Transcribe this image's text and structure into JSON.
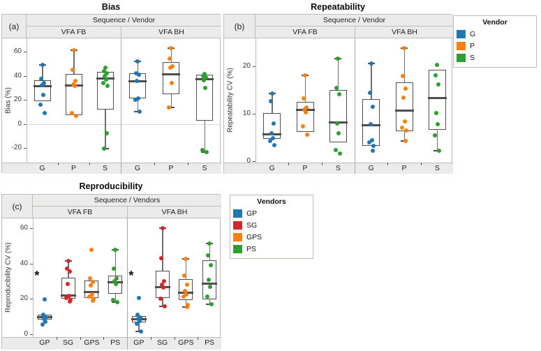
{
  "figure_title": "Boxplot figure with panels (a) Bias, (b) Repeatability, (c) Reproducibility",
  "legends": [
    {
      "title": "Vendor",
      "items": [
        {
          "label": "G",
          "color": "#1f77b4"
        },
        {
          "label": "P",
          "color": "#ff7f0e"
        },
        {
          "label": "S",
          "color": "#2ca02c"
        }
      ]
    },
    {
      "title": "Vendors",
      "items": [
        {
          "label": "GP",
          "color": "#1f77b4"
        },
        {
          "label": "SG",
          "color": "#d62728"
        },
        {
          "label": "GPS",
          "color": "#ff7f0e"
        },
        {
          "label": "PS",
          "color": "#2ca02c"
        }
      ]
    }
  ],
  "chart_data": [
    {
      "type": "boxplot-strip",
      "panel": "(a)",
      "title": "Bias",
      "facet_header": "Sequence  /  Vendor",
      "ylabel": "Bias (%)",
      "ylim": [
        -32,
        71
      ],
      "yticks": [
        60,
        40,
        20,
        0,
        -20
      ],
      "gridlines": [
        0
      ],
      "annotations": [],
      "facets": [
        {
          "label": "VFA FB",
          "groups": [
            {
              "label": "G",
              "color": "#1f77b4",
              "points": [
                49,
                37.5,
                34,
                32,
                24,
                16,
                9
              ],
              "q1": 19,
              "median": 31.5,
              "q3": 36,
              "whisker_high": 49,
              "whisker_low": null
            },
            {
              "label": "P",
              "color": "#ff7f0e",
              "points": [
                61,
                45,
                35.5,
                33,
                31.5,
                9,
                6.5
              ],
              "q1": 7.5,
              "median": 32,
              "q3": 41.5,
              "whisker_high": 61,
              "whisker_low": null
            },
            {
              "label": "S",
              "color": "#2ca02c",
              "points": [
                46.5,
                44,
                42,
                39.5,
                37,
                34,
                31.5,
                -7.5,
                -20.5
              ],
              "q1": 12,
              "median": 37.5,
              "q3": 43.5,
              "whisker_high": null,
              "whisker_low": -20.5
            }
          ]
        },
        {
          "label": "VFA BH",
          "groups": [
            {
              "label": "G",
              "color": "#1f77b4",
              "points": [
                52,
                42,
                41,
                35.5,
                21.5,
                20,
                10
              ],
              "q1": 21,
              "median": 35.5,
              "q3": 42,
              "whisker_high": 52,
              "whisker_low": 10
            },
            {
              "label": "P",
              "color": "#ff7f0e",
              "points": [
                63,
                54.5,
                48,
                46.5,
                34,
                13.5
              ],
              "q1": 24.5,
              "median": 41,
              "q3": 51.5,
              "whisker_high": 63,
              "whisker_low": 13.5
            },
            {
              "label": "S",
              "color": "#2ca02c",
              "points": [
                41.5,
                40,
                38.5,
                36.5,
                30,
                -21.5,
                -23.5
              ],
              "q1": 3,
              "median": 37,
              "q3": 41,
              "whisker_high": null,
              "whisker_low": -23.5
            }
          ]
        }
      ]
    },
    {
      "type": "boxplot-strip",
      "panel": "(b)",
      "title": "Repeatability",
      "facet_header": "Sequence  /  Vendor",
      "ylabel": "Repeatability CV (%)",
      "ylim": [
        -0.3,
        25.8
      ],
      "yticks": [
        20,
        10,
        0
      ],
      "gridlines": [],
      "annotations": [],
      "facets": [
        {
          "label": "VFA FB",
          "groups": [
            {
              "label": "G",
              "color": "#1f77b4",
              "points": [
                14.2,
                12.6,
                7.9,
                5.9,
                4.9,
                4.2,
                3.4
              ],
              "q1": 4.7,
              "median": 5.6,
              "q3": 10.1,
              "whisker_high": 14.2,
              "whisker_low": null
            },
            {
              "label": "P",
              "color": "#ff7f0e",
              "points": [
                18,
                13.2,
                11.3,
                10.9,
                10.2,
                7.3,
                5.6
              ],
              "q1": 6.2,
              "median": 10.7,
              "q3": 12.4,
              "whisker_high": 18,
              "whisker_low": null
            },
            {
              "label": "S",
              "color": "#2ca02c",
              "points": [
                21.6,
                15.4,
                14.1,
                7.9,
                5.9,
                2.4,
                1.6
              ],
              "q1": 4,
              "median": 8.1,
              "q3": 14.9,
              "whisker_high": 21.6,
              "whisker_low": null
            }
          ]
        },
        {
          "label": "VFA BH",
          "groups": [
            {
              "label": "G",
              "color": "#1f77b4",
              "points": [
                20.5,
                14.3,
                11.5,
                7.7,
                4.4,
                3.9,
                3.2,
                2.2
              ],
              "q1": 3.2,
              "median": 7.6,
              "q3": 13.1,
              "whisker_high": 20.5,
              "whisker_low": null
            },
            {
              "label": "P",
              "color": "#ff7f0e",
              "points": [
                23.7,
                17.9,
                15.3,
                13.3,
                8.4,
                7.1,
                6.4,
                4.3
              ],
              "q1": 6.3,
              "median": 10.6,
              "q3": 16.5,
              "whisker_high": 23.7,
              "whisker_low": 4.3
            },
            {
              "label": "S",
              "color": "#2ca02c",
              "points": [
                20.3,
                18,
                16.1,
                10.1,
                7.8,
                5.4,
                2.2
              ],
              "q1": 6.6,
              "median": 13.2,
              "q3": 19.2,
              "whisker_high": null,
              "whisker_low": 2.2
            }
          ]
        }
      ]
    },
    {
      "type": "boxplot-strip",
      "panel": "(c)",
      "title": "Reproducibility",
      "facet_header": "Sequence  /  Vendors",
      "ylabel": "Reproducibility CV (%)",
      "ylim": [
        -1.5,
        65.5
      ],
      "yticks": [
        60,
        40,
        20,
        0
      ],
      "gridlines": [],
      "annotations": [
        {
          "symbol": "*",
          "facet": 0,
          "group": 0,
          "value": 33
        },
        {
          "symbol": "*",
          "facet": 1,
          "group": 0,
          "value": 33
        }
      ],
      "facets": [
        {
          "label": "VFA FB",
          "groups": [
            {
              "label": "GP",
              "color": "#1f77b4",
              "points": [
                19.8,
                11,
                9.6,
                8.7,
                7.2,
                5.7
              ],
              "q1": 8.2,
              "median": 9.8,
              "q3": 11.1,
              "whisker_high": null,
              "whisker_low": null
            },
            {
              "label": "SG",
              "color": "#d62728",
              "points": [
                41.5,
                37,
                35.5,
                28.5,
                21.7,
                20.5,
                19.5,
                18.7
              ],
              "q1": 20,
              "median": 21.8,
              "q3": 32,
              "whisker_high": 41.5,
              "whisker_low": null
            },
            {
              "label": "GPS",
              "color": "#ff7f0e",
              "points": [
                47.8,
                31.5,
                29.5,
                27.8,
                22.5,
                21.3,
                20,
                19
              ],
              "q1": 20.4,
              "median": 23.8,
              "q3": 30.6,
              "whisker_high": null,
              "whisker_low": null
            },
            {
              "label": "PS",
              "color": "#2ca02c",
              "points": [
                47.8,
                37,
                31.6,
                30,
                28.3,
                19.5,
                18.3
              ],
              "q1": 23,
              "median": 29.5,
              "q3": 33.3,
              "whisker_high": 47.8,
              "whisker_low": 18.3
            }
          ]
        },
        {
          "label": "VFA BH",
          "groups": [
            {
              "label": "GP",
              "color": "#1f77b4",
              "points": [
                20.4,
                11.3,
                9.6,
                8.7,
                7.4,
                6.1,
                1.7
              ],
              "q1": 6.9,
              "median": 8.4,
              "q3": 10.4,
              "whisker_high": null,
              "whisker_low": 1.7
            },
            {
              "label": "SG",
              "color": "#d62728",
              "points": [
                60,
                43,
                30,
                28,
                26.5,
                20,
                16
              ],
              "q1": 20.4,
              "median": 26.7,
              "q3": 36.1,
              "whisker_high": 60,
              "whisker_low": 16
            },
            {
              "label": "GPS",
              "color": "#ff7f0e",
              "points": [
                42.6,
                33,
                28.2,
                24.7,
                22.5,
                21.2,
                16.5,
                15.6
              ],
              "q1": 19.5,
              "median": 23.4,
              "q3": 31.3,
              "whisker_high": 42.6,
              "whisker_low": 15.6
            },
            {
              "label": "PS",
              "color": "#2ca02c",
              "points": [
                51.2,
                44.6,
                39.1,
                31,
                26.7,
                21.2,
                17
              ],
              "q1": 19.9,
              "median": 28.6,
              "q3": 42,
              "whisker_high": 51.2,
              "whisker_low": 17
            }
          ]
        }
      ]
    }
  ],
  "colors": {
    "panel_border": "#bdbdb5",
    "strip_background": "#ebebeb",
    "box_edge": "#4d4d4d",
    "whisker": "#6f6f6f",
    "gridline": "#d9d9d9"
  }
}
